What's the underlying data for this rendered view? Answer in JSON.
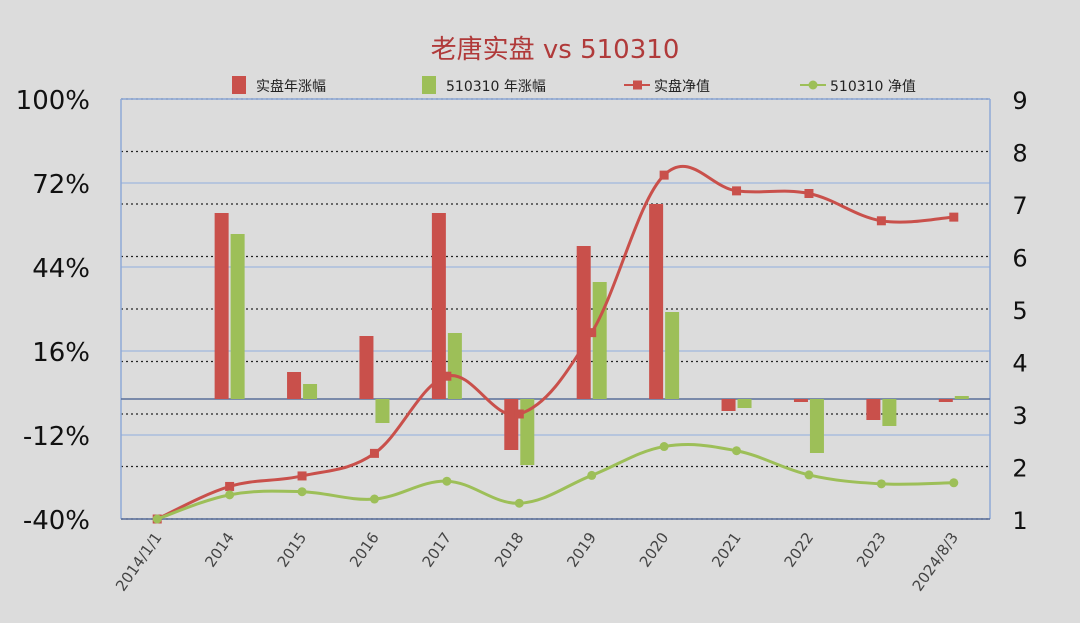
{
  "chart_data": {
    "type": "bar",
    "title": "老唐实盘 vs 510310",
    "categories": [
      "2014/1/1",
      "2014",
      "2015",
      "2016",
      "2017",
      "2018",
      "2019",
      "2020",
      "2021",
      "2022",
      "2023",
      "2024/8/3"
    ],
    "series": [
      {
        "name": "实盘年涨幅",
        "kind": "bar",
        "axis": "left",
        "color": "#c9504b",
        "values": [
          null,
          62,
          9,
          21,
          62,
          -17,
          51,
          65,
          -4,
          -1,
          -7,
          -1
        ]
      },
      {
        "name": "510310 年涨幅",
        "kind": "bar",
        "axis": "left",
        "color": "#9dbf58",
        "values": [
          null,
          55,
          5,
          -8,
          22,
          -22,
          39,
          29,
          -3,
          -18,
          -9,
          1
        ]
      },
      {
        "name": "实盘净值",
        "kind": "line",
        "axis": "right",
        "color": "#c9504b",
        "marker": "square",
        "values": [
          1.0,
          1.62,
          1.82,
          2.25,
          3.72,
          3.0,
          4.55,
          7.55,
          7.25,
          7.2,
          6.68,
          6.75
        ]
      },
      {
        "name": "510310 净值",
        "kind": "line",
        "axis": "right",
        "color": "#9dbf58",
        "marker": "circle",
        "values": [
          1.0,
          1.46,
          1.52,
          1.38,
          1.72,
          1.3,
          1.83,
          2.38,
          2.3,
          1.84,
          1.67,
          1.69
        ]
      }
    ],
    "yleft": {
      "ticks": [
        "100%",
        "72%",
        "44%",
        "16%",
        "-12%",
        "-40%"
      ],
      "lim": [
        -40,
        100
      ]
    },
    "yright": {
      "ticks": [
        "9",
        "8",
        "7",
        "6",
        "5",
        "4",
        "3",
        "2",
        "1"
      ],
      "lim": [
        1,
        9
      ]
    },
    "grid": true,
    "legend_position": "top"
  }
}
